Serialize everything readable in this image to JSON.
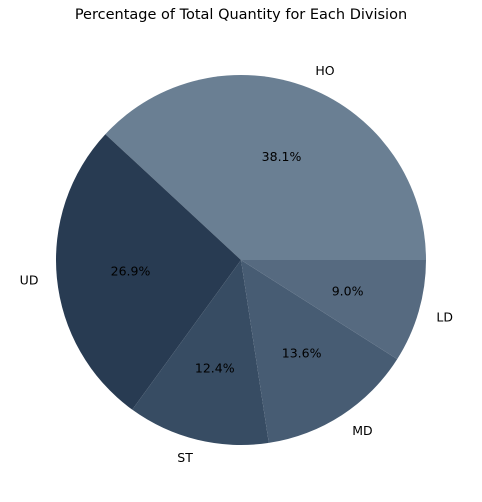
{
  "chart_data": {
    "type": "pie",
    "title": "Percentage of Total Quantity for Each Division",
    "categories": [
      "HO",
      "UD",
      "ST",
      "MD",
      "LD"
    ],
    "values": [
      38.1,
      26.9,
      12.4,
      13.6,
      9.0
    ],
    "value_labels": [
      "38.1%",
      "26.9%",
      "12.4%",
      "13.6%",
      "9.0%"
    ],
    "colors": [
      "#6a7f93",
      "#283b52",
      "#374c63",
      "#475c73",
      "#566a80"
    ],
    "start_angle_deg": 0,
    "direction": "counterclockwise",
    "legend": "none"
  }
}
